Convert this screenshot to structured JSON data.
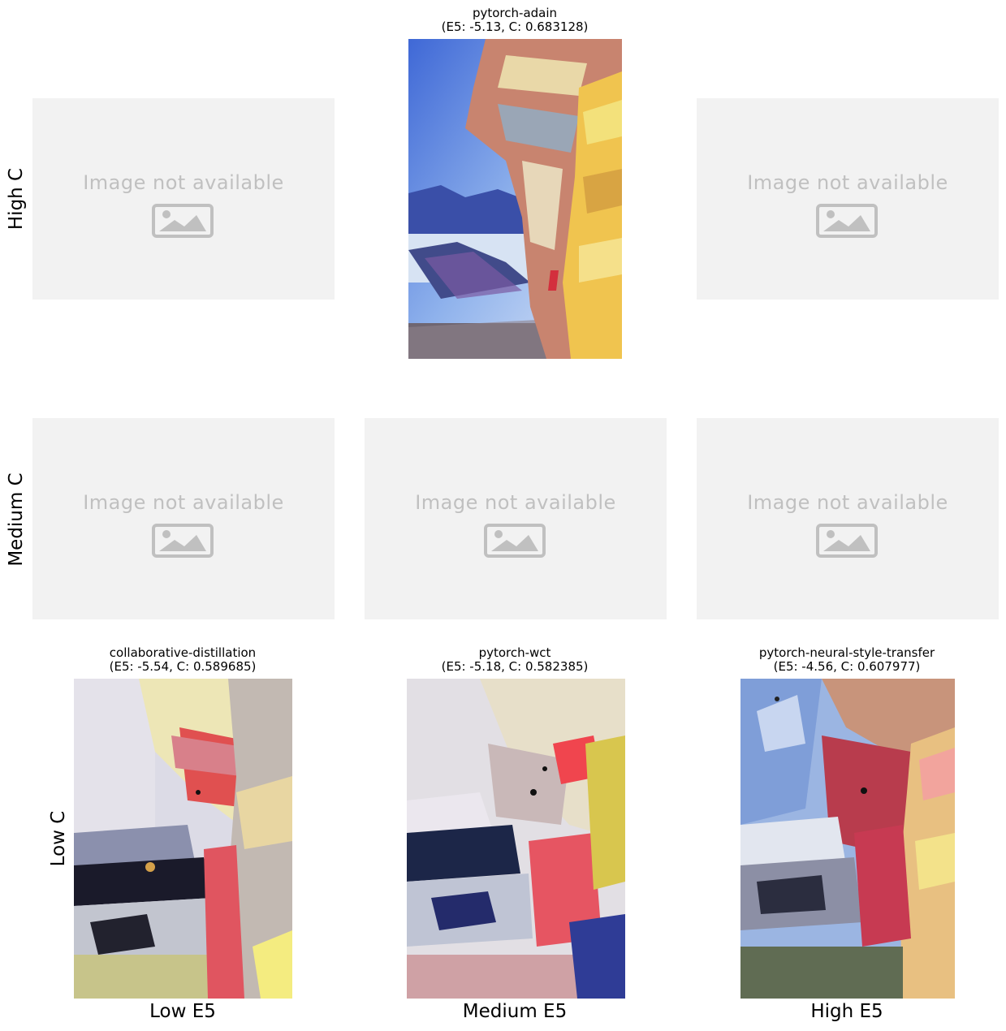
{
  "rows": [
    {
      "label": "High C"
    },
    {
      "label": "Medium C"
    },
    {
      "label": "Low C"
    }
  ],
  "columns": [
    {
      "label": "Low E5"
    },
    {
      "label": "Medium E5"
    },
    {
      "label": "High E5"
    }
  ],
  "placeholder_text": "Image not available",
  "placeholder_icon": "image-icon",
  "cells": {
    "high_medium": {
      "method": "pytorch-adain",
      "scores": "(E5: -5.13, C: 0.683128)"
    },
    "low_low": {
      "method": "collaborative-distillation",
      "scores": "(E5: -5.54, C: 0.589685)"
    },
    "low_medium": {
      "method": "pytorch-wct",
      "scores": "(E5: -5.18, C: 0.582385)"
    },
    "low_high": {
      "method": "pytorch-neural-style-transfer",
      "scores": "(E5: -4.56, C: 0.607977)"
    }
  },
  "colors": {
    "placeholder_bg": "#f2f2f2",
    "placeholder_fg": "#c0c0c0"
  }
}
